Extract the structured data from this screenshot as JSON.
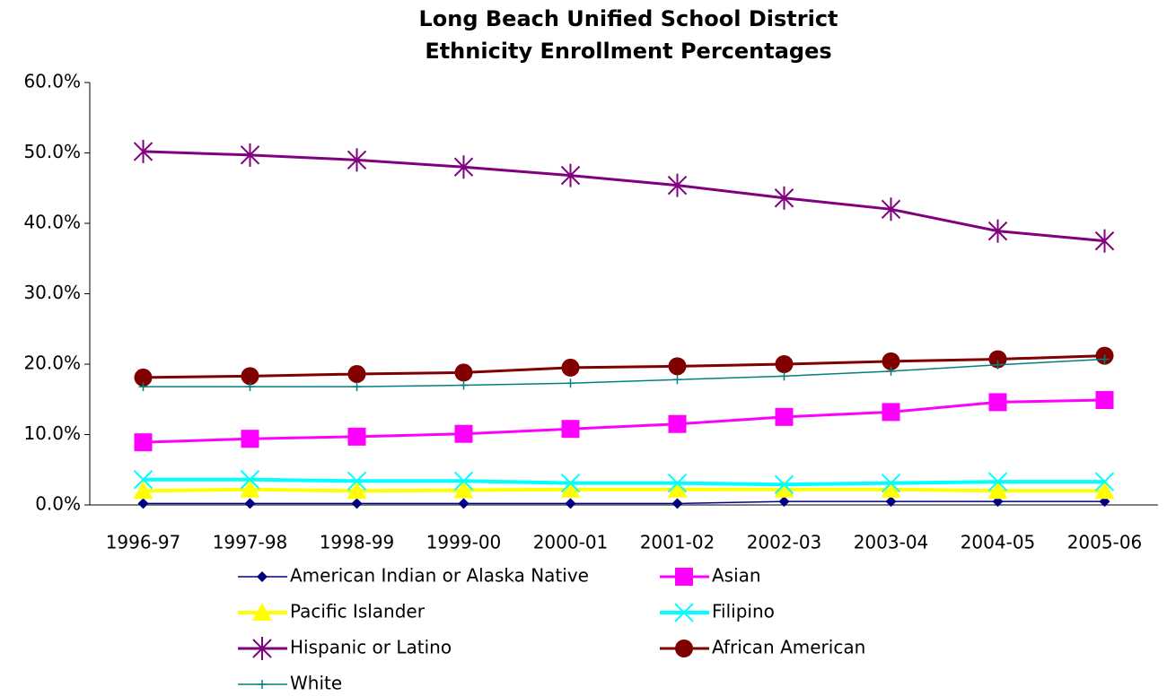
{
  "chart_data": {
    "type": "line",
    "title": [
      "Long Beach Unified School District",
      "Ethnicity Enrollment Percentages"
    ],
    "categories": [
      "1996-97",
      "1997-98",
      "1998-99",
      "1999-00",
      "2000-01",
      "2001-02",
      "2002-03",
      "2003-04",
      "2004-05",
      "2005-06"
    ],
    "ylim": [
      0,
      60
    ],
    "yticks": [
      {
        "value": 0,
        "label": "0.0%"
      },
      {
        "value": 10,
        "label": "10.0%"
      },
      {
        "value": 20,
        "label": "20.0%"
      },
      {
        "value": 30,
        "label": "30.0%"
      },
      {
        "value": 40,
        "label": "40.0%"
      },
      {
        "value": 50,
        "label": "50.0%"
      },
      {
        "value": 60,
        "label": "60.0%"
      }
    ],
    "grid": false,
    "series": [
      {
        "name": "American Indian or Alaska Native",
        "color": "#000080",
        "marker": "diamond",
        "values": [
          0.2,
          0.2,
          0.2,
          0.2,
          0.2,
          0.2,
          0.5,
          0.5,
          0.5,
          0.5
        ]
      },
      {
        "name": "Asian",
        "color": "#ff00ff",
        "marker": "square",
        "values": [
          8.9,
          9.4,
          9.7,
          10.1,
          10.8,
          11.5,
          12.5,
          13.2,
          14.6,
          14.9
        ]
      },
      {
        "name": "Pacific Islander",
        "color": "#ffff00",
        "marker": "triangle",
        "values": [
          2.0,
          2.2,
          2.0,
          2.1,
          2.2,
          2.2,
          2.2,
          2.2,
          2.0,
          2.0
        ]
      },
      {
        "name": "Filipino",
        "color": "#00ffff",
        "marker": "x",
        "values": [
          3.6,
          3.6,
          3.4,
          3.4,
          3.1,
          3.1,
          2.9,
          3.1,
          3.3,
          3.3
        ]
      },
      {
        "name": "Hispanic or Latino",
        "color": "#800080",
        "marker": "asterisk",
        "values": [
          50.2,
          49.7,
          49.0,
          48.0,
          46.8,
          45.4,
          43.6,
          42.0,
          38.9,
          37.5
        ]
      },
      {
        "name": "African American",
        "color": "#800000",
        "marker": "circle",
        "values": [
          18.1,
          18.3,
          18.6,
          18.8,
          19.5,
          19.7,
          20.0,
          20.4,
          20.7,
          21.2
        ]
      },
      {
        "name": "White",
        "color": "#008080",
        "marker": "plus",
        "values": [
          16.8,
          16.8,
          16.8,
          17.0,
          17.3,
          17.8,
          18.3,
          19.0,
          19.9,
          20.7
        ]
      }
    ]
  }
}
